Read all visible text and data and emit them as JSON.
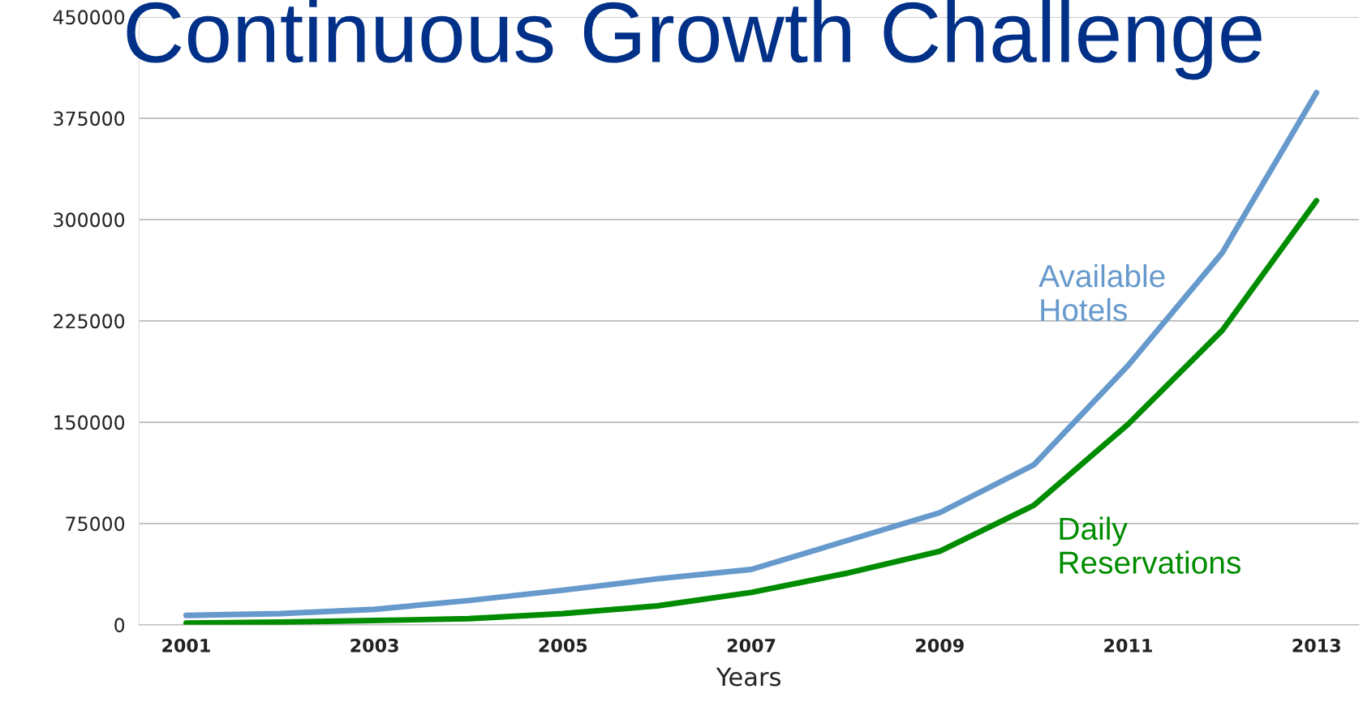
{
  "chart_data": {
    "type": "line",
    "title": "Continuous Growth Challenge",
    "xlabel": "Years",
    "x": [
      2001,
      2002,
      2003,
      2004,
      2005,
      2006,
      2007,
      2008,
      2009,
      2010,
      2011,
      2012,
      2013
    ],
    "series": [
      {
        "name": "Available\nHotels",
        "color": "#6699cc",
        "values": [
          7000,
          8300,
          11500,
          18000,
          25600,
          34000,
          41000,
          62000,
          83000,
          118500,
          192000,
          275500,
          394000
        ]
      },
      {
        "name": "Daily\nReservations",
        "color": "#008c00",
        "values": [
          1300,
          2000,
          3200,
          4500,
          8300,
          14000,
          24000,
          38000,
          54500,
          88500,
          148500,
          218000,
          314000
        ]
      }
    ],
    "xlim": [
      2000.5,
      2013.45
    ],
    "xticks": [
      2001,
      2003,
      2005,
      2007,
      2009,
      2011,
      2013
    ],
    "ylim": [
      0,
      450000
    ],
    "yticks": [
      0,
      75000,
      150000,
      225000,
      300000,
      375000,
      450000
    ],
    "grid": "y",
    "legend": false,
    "marker": "none",
    "line_style": "solid"
  }
}
